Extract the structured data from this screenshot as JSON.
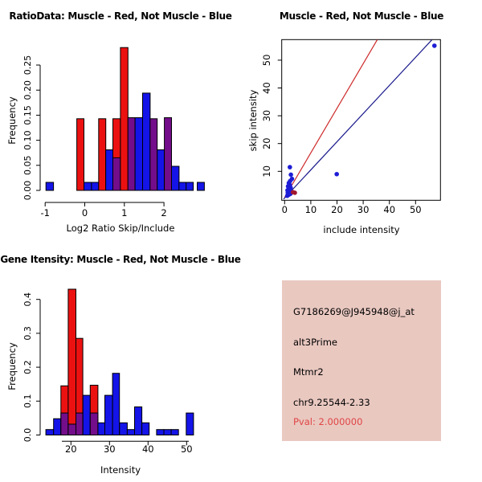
{
  "window": {
    "background": "#ffffff"
  },
  "colors": {
    "hist_red": "#EC1111",
    "hist_blue": "#1414E8",
    "hist_purple": "#730D8A",
    "bar_border": "#000000",
    "axis": "#000000",
    "scatter_point_blue": "#1D1DD6",
    "scatter_point_red": "#A01830",
    "line_red": "#CD2A2A",
    "line_blue": "#1A1A8C",
    "info_bg": "#E9C8C0",
    "pval_red": "#E04545"
  },
  "chart_data": [
    {
      "id": "ratio_histogram",
      "type": "bar",
      "title": "RatioData: Muscle - Red, Not Muscle - Blue",
      "xlabel": "Log2 Ratio Skip/Include",
      "ylabel": "Frequency",
      "legend_note": "red = Muscle, blue = Not Muscle, purple = overlap",
      "xlim": [
        -1.15,
        3.1
      ],
      "ylim": [
        0,
        0.29
      ],
      "xticks": [
        -1,
        0,
        1,
        2
      ],
      "xtick_labels": [
        "-1",
        "0",
        "1",
        "2"
      ],
      "yticks": [
        0,
        0.05,
        0.1,
        0.15,
        0.2,
        0.25
      ],
      "ytick_labels": [
        "0.00",
        "0.05",
        "0.10",
        "0.15",
        "0.20",
        "0.25"
      ],
      "bars": [
        [
          -0.98,
          -0.79,
          0.016,
          "blue"
        ],
        [
          -0.2,
          -0.02,
          0.143,
          "red"
        ],
        [
          -0.02,
          0.17,
          0.016,
          "blue"
        ],
        [
          0.17,
          0.35,
          0.016,
          "blue"
        ],
        [
          0.35,
          0.53,
          0.143,
          "red"
        ],
        [
          0.53,
          0.71,
          0.081,
          "blue"
        ],
        [
          0.71,
          0.9,
          0.143,
          "red"
        ],
        [
          0.71,
          0.9,
          0.065,
          "purple"
        ],
        [
          0.9,
          1.09,
          0.285,
          "red"
        ],
        [
          1.09,
          1.27,
          0.145,
          "purple"
        ],
        [
          1.27,
          1.46,
          0.145,
          "blue"
        ],
        [
          1.46,
          1.65,
          0.194,
          "blue"
        ],
        [
          1.65,
          1.83,
          0.143,
          "purple"
        ],
        [
          1.83,
          2.01,
          0.081,
          "blue"
        ],
        [
          2.01,
          2.19,
          0.145,
          "purple"
        ],
        [
          2.19,
          2.38,
          0.048,
          "blue"
        ],
        [
          2.38,
          2.56,
          0.016,
          "blue"
        ],
        [
          2.56,
          2.74,
          0.016,
          "blue"
        ],
        [
          2.84,
          3.02,
          0.016,
          "blue"
        ]
      ]
    },
    {
      "id": "intensity_scatter",
      "type": "scatter",
      "title": "Muscle - Red, Not Muscle - Blue",
      "xlabel": "include intensity",
      "ylabel": "skip intensity",
      "xlim": [
        -1.1,
        59.5
      ],
      "ylim": [
        -0.4,
        57.4
      ],
      "xticks": [
        0,
        10,
        20,
        30,
        40,
        50
      ],
      "xtick_labels": [
        "0",
        "10",
        "20",
        "30",
        "40",
        "50"
      ],
      "yticks": [
        10,
        20,
        30,
        40,
        50
      ],
      "ytick_labels": [
        "10",
        "20",
        "30",
        "40",
        "50"
      ],
      "blue_points": [
        [
          1.0,
          1.2
        ],
        [
          1.6,
          1.6
        ],
        [
          2.2,
          1.9
        ],
        [
          1.2,
          2.3
        ],
        [
          1.9,
          2.6
        ],
        [
          2.5,
          2.9
        ],
        [
          1.1,
          3.2
        ],
        [
          1.7,
          3.6
        ],
        [
          2.3,
          4.1
        ],
        [
          1.3,
          4.6
        ],
        [
          2.0,
          5.1
        ],
        [
          1.6,
          5.8
        ],
        [
          2.1,
          6.5
        ],
        [
          2.8,
          7.3
        ],
        [
          2.4,
          8.8
        ],
        [
          2.0,
          11.5
        ],
        [
          19.9,
          9.0
        ],
        [
          57.2,
          55.2
        ]
      ],
      "red_points": [
        [
          3.2,
          2.5
        ],
        [
          3.9,
          2.3
        ]
      ],
      "lines": [
        {
          "color": "red",
          "x1": 0.0,
          "y1": 0.6,
          "x2": 35.4,
          "y2": 57.4
        },
        {
          "color": "blue",
          "x1": -0.4,
          "y1": 0.0,
          "x2": 56.3,
          "y2": 57.4
        }
      ]
    },
    {
      "id": "gene_intensity_histogram",
      "type": "bar",
      "title": "Gene Itensity: Muscle - Red, Not Muscle - Blue",
      "xlabel": "Intensity",
      "ylabel": "Frequency",
      "legend_note": "red = Muscle, blue = Not Muscle, purple = overlap",
      "xlim": [
        12.3,
        53
      ],
      "ylim": [
        0,
        0.44
      ],
      "xticks": [
        20,
        30,
        40,
        50
      ],
      "xtick_labels": [
        "20",
        "30",
        "40",
        "50"
      ],
      "yticks": [
        0,
        0.1,
        0.2,
        0.3,
        0.4
      ],
      "ytick_labels": [
        "0.0",
        "0.1",
        "0.2",
        "0.3",
        "0.4"
      ],
      "bars": [
        [
          13.5,
          15.5,
          0.016,
          "blue"
        ],
        [
          15.5,
          17.4,
          0.048,
          "blue"
        ],
        [
          17.4,
          19.3,
          0.145,
          "red"
        ],
        [
          17.4,
          19.3,
          0.065,
          "purple"
        ],
        [
          19.3,
          21.3,
          0.43,
          "red"
        ],
        [
          19.3,
          21.3,
          0.032,
          "purple"
        ],
        [
          21.3,
          23.1,
          0.285,
          "red"
        ],
        [
          21.3,
          23.1,
          0.065,
          "purple"
        ],
        [
          23.1,
          25.0,
          0.117,
          "blue"
        ],
        [
          25.0,
          27.0,
          0.147,
          "red"
        ],
        [
          25.0,
          27.0,
          0.065,
          "purple"
        ],
        [
          27.0,
          28.8,
          0.036,
          "blue"
        ],
        [
          28.8,
          30.8,
          0.117,
          "blue"
        ],
        [
          30.8,
          32.6,
          0.182,
          "blue"
        ],
        [
          32.6,
          34.6,
          0.036,
          "blue"
        ],
        [
          34.6,
          36.5,
          0.016,
          "blue"
        ],
        [
          36.5,
          38.4,
          0.083,
          "blue"
        ],
        [
          38.4,
          40.3,
          0.036,
          "blue"
        ],
        [
          42.2,
          44.1,
          0.016,
          "blue"
        ],
        [
          44.1,
          46.0,
          0.016,
          "blue"
        ],
        [
          46.0,
          47.9,
          0.016,
          "blue"
        ],
        [
          49.9,
          51.8,
          0.065,
          "blue"
        ]
      ]
    }
  ],
  "info_panel": {
    "probe": "G7186269@J945948@j_at",
    "event_type": "alt3Prime",
    "gene": "Mtmr2",
    "location": "chr9.25544-2.33",
    "pval": "Pval: 2.000000"
  }
}
